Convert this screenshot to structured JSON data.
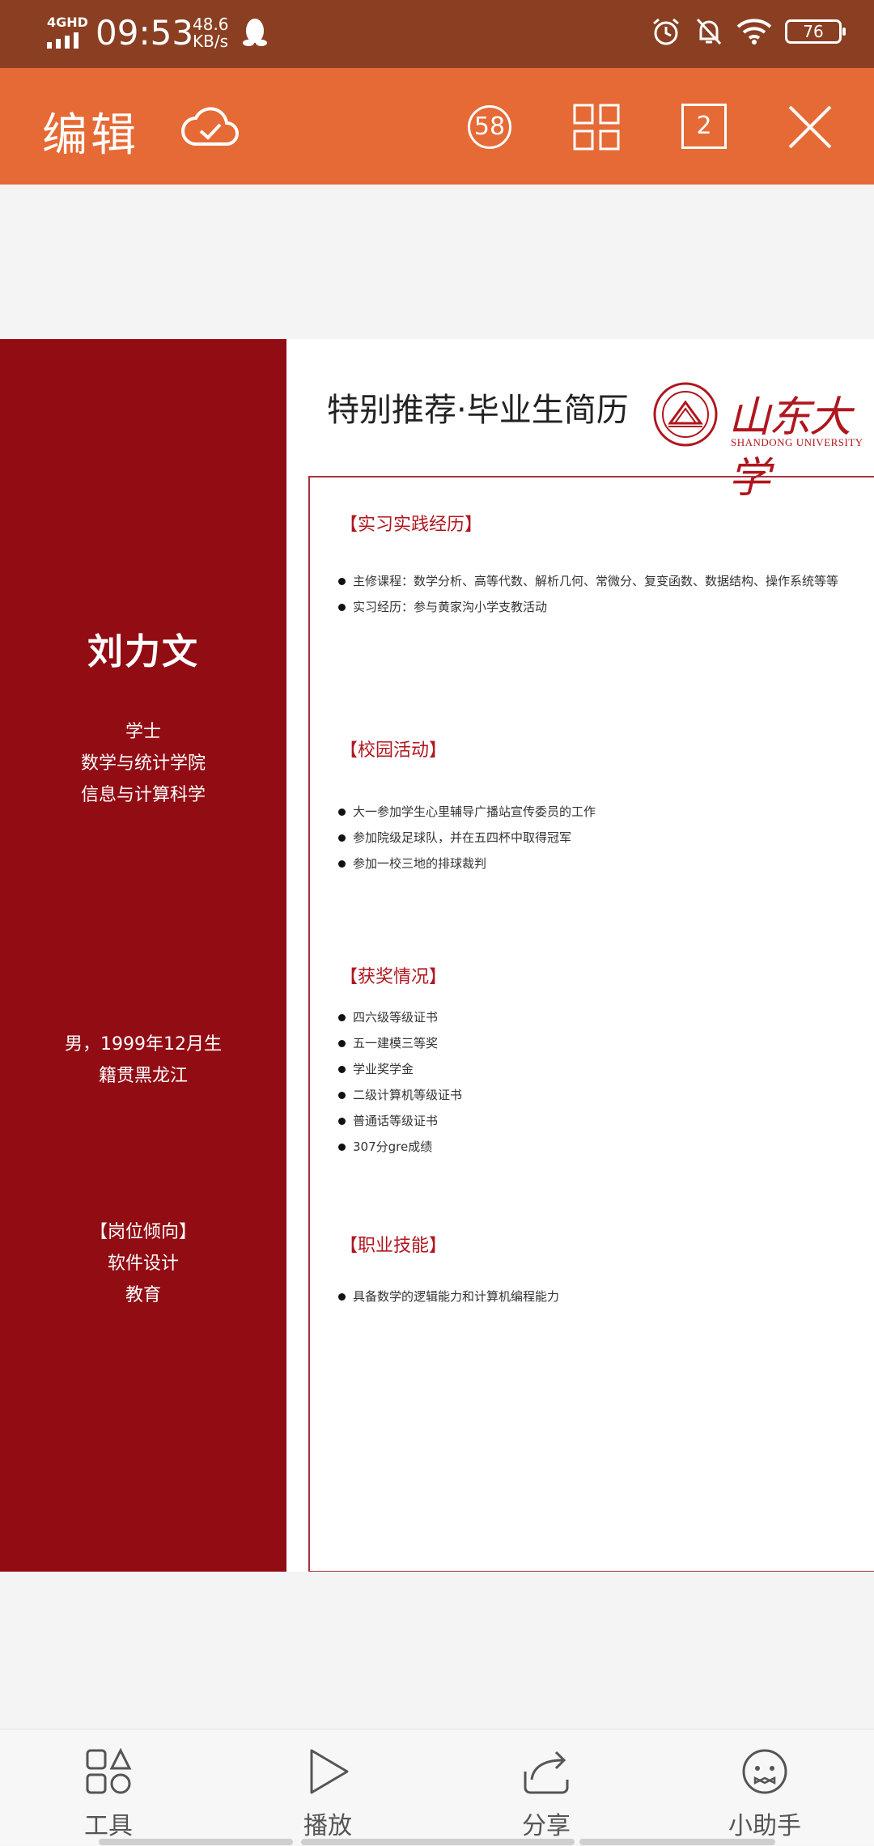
{
  "status_bar": {
    "network": "4GHD",
    "time": "09:53",
    "speed_value": "48.6",
    "speed_unit": "KB/s",
    "battery": "76"
  },
  "toolbar": {
    "title": "编辑",
    "slide_count_badge": "58",
    "page_number": "2"
  },
  "resume": {
    "header": "特别推荐·毕业生简历",
    "university_logo_text": "山东大学",
    "university_sub": "SHANDONG UNIVERSITY",
    "name": "刘力文",
    "degree": "学士",
    "college": "数学与统计学院",
    "major": "信息与计算科学",
    "gender_birth": "男，1999年12月生",
    "hometown": "籍贯黑龙江",
    "position_title": "【岗位倾向】",
    "position_1": "软件设计",
    "position_2": "教育",
    "sections": {
      "practice": {
        "title": "【实习实践经历】",
        "items": [
          "主修课程：数学分析、高等代数、解析几何、常微分、复变函数、数据结构、操作系统等等",
          "实习经历：参与黄家沟小学支教活动"
        ]
      },
      "campus": {
        "title": "【校园活动】",
        "items": [
          "大一参加学生心里辅导广播站宣传委员的工作",
          "参加院级足球队，并在五四杯中取得冠军",
          "参加一校三地的排球裁判"
        ]
      },
      "awards": {
        "title": "【获奖情况】",
        "items": [
          "四六级等级证书",
          "五一建模三等奖",
          "学业奖学金",
          "二级计算机等级证书",
          "普通话等级证书",
          "307分gre成绩"
        ]
      },
      "skills": {
        "title": "【职业技能】",
        "items": [
          "具备数学的逻辑能力和计算机编程能力"
        ]
      }
    }
  },
  "bottom_nav": {
    "tools": "工具",
    "play": "播放",
    "share": "分享",
    "assistant": "小助手"
  },
  "colors": {
    "status_bar": "#8a3f22",
    "toolbar": "#e66a35",
    "sidebar": "#920c14",
    "accent_red": "#b0161e"
  }
}
